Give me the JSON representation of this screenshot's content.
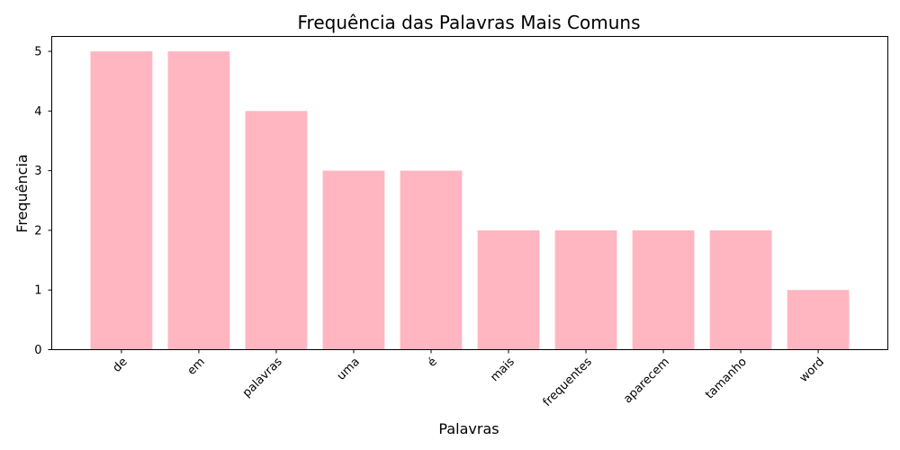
{
  "chart_data": {
    "type": "bar",
    "title": "Frequência das Palavras Mais Comuns",
    "xlabel": "Palavras",
    "ylabel": "Frequência",
    "categories": [
      "de",
      "em",
      "palavras",
      "uma",
      "é",
      "mais",
      "frequentes",
      "aparecem",
      "tamanho",
      "word"
    ],
    "values": [
      5,
      5,
      4,
      3,
      3,
      2,
      2,
      2,
      2,
      1
    ],
    "ylim": [
      0,
      5.25
    ],
    "yticks": [
      0,
      1,
      2,
      3,
      4,
      5
    ],
    "bar_color": "#ffb6c1",
    "grid": false,
    "legend": "none"
  }
}
